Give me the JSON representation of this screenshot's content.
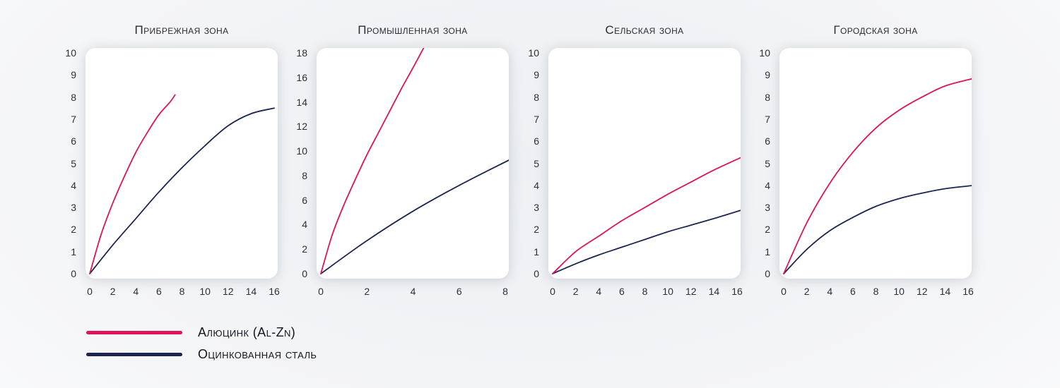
{
  "legend": {
    "items": [
      {
        "label": "Алюцинк (Al-Zn)",
        "color": "#de1358"
      },
      {
        "label": "Оцинкованная сталь",
        "color": "#1c2452"
      }
    ]
  },
  "chart_data": [
    {
      "type": "line",
      "title": "Прибрежная зона",
      "xlabel": "",
      "ylabel": "",
      "xlim": [
        0,
        16
      ],
      "ylim": [
        0,
        10
      ],
      "xticks": [
        0,
        2,
        4,
        6,
        8,
        10,
        12,
        14,
        16
      ],
      "yticks": [
        0,
        1,
        2,
        3,
        4,
        5,
        6,
        7,
        8,
        9,
        10
      ],
      "grid": false,
      "legend_position": "bottom-left",
      "series": [
        {
          "name": "Алюцинк (Al-Zn)",
          "color": "#de1358",
          "x": [
            0,
            1,
            2,
            3,
            4,
            5,
            6,
            7,
            7.4
          ],
          "y": [
            0,
            1.8,
            3.2,
            4.4,
            5.5,
            6.4,
            7.2,
            7.8,
            8.1
          ]
        },
        {
          "name": "Оцинкованная сталь",
          "color": "#1c2452",
          "x": [
            0,
            2,
            4,
            6,
            8,
            10,
            12,
            14,
            16
          ],
          "y": [
            0,
            1.3,
            2.5,
            3.7,
            4.8,
            5.8,
            6.7,
            7.25,
            7.5
          ]
        }
      ]
    },
    {
      "type": "line",
      "title": "Промышленная зона",
      "xlabel": "",
      "ylabel": "",
      "xlim": [
        0,
        8
      ],
      "ylim": [
        0,
        18
      ],
      "xticks": [
        0,
        2,
        4,
        6,
        8
      ],
      "yticks": [
        0,
        2,
        4,
        6,
        8,
        10,
        12,
        14,
        16,
        18
      ],
      "grid": false,
      "legend_position": "bottom-left",
      "series": [
        {
          "name": "Алюцинк (Al-Zn)",
          "color": "#de1358",
          "x": [
            0,
            0.5,
            1,
            1.5,
            2,
            2.5,
            3,
            3.5,
            4,
            4.6
          ],
          "y": [
            0,
            3.2,
            5.6,
            7.7,
            9.7,
            11.5,
            13.3,
            15.1,
            16.8,
            18.9
          ]
        },
        {
          "name": "Оцинкованная сталь",
          "color": "#1c2452",
          "x": [
            0,
            2,
            4,
            6,
            8.2
          ],
          "y": [
            0,
            2.7,
            5.1,
            7.2,
            9.3
          ]
        }
      ]
    },
    {
      "type": "line",
      "title": "Сельская зона",
      "xlabel": "",
      "ylabel": "",
      "xlim": [
        0,
        16
      ],
      "ylim": [
        0,
        10
      ],
      "xticks": [
        0,
        2,
        4,
        6,
        8,
        10,
        12,
        14,
        16
      ],
      "yticks": [
        0,
        1,
        2,
        3,
        4,
        5,
        6,
        7,
        8,
        9,
        10
      ],
      "grid": false,
      "legend_position": "bottom-left",
      "series": [
        {
          "name": "Алюцинк (Al-Zn)",
          "color": "#de1358",
          "x": [
            0,
            2,
            4,
            6,
            8,
            10,
            12,
            14,
            16.5
          ],
          "y": [
            0,
            1.0,
            1.7,
            2.4,
            3.0,
            3.6,
            4.15,
            4.7,
            5.3
          ]
        },
        {
          "name": "Оцинкованная сталь",
          "color": "#1c2452",
          "x": [
            0,
            2,
            4,
            6,
            8,
            10,
            12,
            14,
            16.5
          ],
          "y": [
            0,
            0.45,
            0.85,
            1.2,
            1.55,
            1.9,
            2.2,
            2.5,
            2.9
          ]
        }
      ]
    },
    {
      "type": "line",
      "title": "Городская зона",
      "xlabel": "",
      "ylabel": "",
      "xlim": [
        0,
        16
      ],
      "ylim": [
        0,
        10
      ],
      "xticks": [
        0,
        2,
        4,
        6,
        8,
        10,
        12,
        14,
        16
      ],
      "yticks": [
        0,
        1,
        2,
        3,
        4,
        5,
        6,
        7,
        8,
        9,
        10
      ],
      "grid": false,
      "legend_position": "bottom-left",
      "series": [
        {
          "name": "Алюцинк (Al-Zn)",
          "color": "#de1358",
          "x": [
            0,
            2,
            4,
            6,
            8,
            10,
            12,
            14,
            16.5
          ],
          "y": [
            0,
            2.3,
            4.1,
            5.5,
            6.6,
            7.4,
            8.0,
            8.5,
            8.85
          ]
        },
        {
          "name": "Оцинкованная сталь",
          "color": "#1c2452",
          "x": [
            0,
            2,
            4,
            6,
            8,
            10,
            12,
            14,
            16.5
          ],
          "y": [
            0,
            1.1,
            1.95,
            2.55,
            3.05,
            3.4,
            3.65,
            3.85,
            4.0
          ]
        }
      ]
    }
  ]
}
